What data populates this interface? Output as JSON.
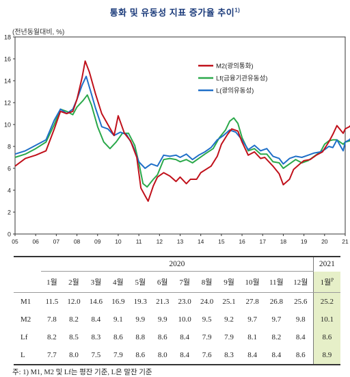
{
  "title": "통화 및 유동성 지표 증가율 추이",
  "title_footnote": "1)",
  "unit": "(전년동월대비, %)",
  "colors": {
    "M2": "#c0101a",
    "Lf": "#2aa84a",
    "L": "#1f6fc8",
    "title": "#1a3a7a",
    "highlight": "#e6efc8"
  },
  "chart_data": {
    "type": "line",
    "ylim": [
      0,
      18
    ],
    "yticks": [
      0,
      2,
      4,
      6,
      8,
      10,
      12,
      14,
      16,
      18
    ],
    "xticks": [
      "05",
      "06",
      "07",
      "08",
      "09",
      "10",
      "11",
      "12",
      "13",
      "14",
      "15",
      "16",
      "17",
      "18",
      "19",
      "20",
      "21"
    ],
    "x_start_year": 2005,
    "grid": false,
    "legend_position": "top-right",
    "series": [
      {
        "name": "M2(광의통화)",
        "key": "M2",
        "points": [
          [
            2005.0,
            6.2
          ],
          [
            2005.5,
            6.9
          ],
          [
            2006.0,
            7.2
          ],
          [
            2006.5,
            7.6
          ],
          [
            2006.9,
            9.6
          ],
          [
            2007.2,
            11.2
          ],
          [
            2007.5,
            11.0
          ],
          [
            2007.8,
            11.2
          ],
          [
            2008.0,
            12.3
          ],
          [
            2008.25,
            14.3
          ],
          [
            2008.4,
            15.8
          ],
          [
            2008.6,
            14.8
          ],
          [
            2008.9,
            12.8
          ],
          [
            2009.2,
            11.0
          ],
          [
            2009.5,
            10.0
          ],
          [
            2009.8,
            9.0
          ],
          [
            2010.0,
            10.8
          ],
          [
            2010.3,
            9.2
          ],
          [
            2010.6,
            8.5
          ],
          [
            2010.9,
            7.0
          ],
          [
            2011.1,
            4.2
          ],
          [
            2011.3,
            3.5
          ],
          [
            2011.45,
            3.0
          ],
          [
            2011.7,
            4.4
          ],
          [
            2011.9,
            5.2
          ],
          [
            2012.2,
            5.6
          ],
          [
            2012.5,
            5.3
          ],
          [
            2012.8,
            4.8
          ],
          [
            2013.0,
            5.2
          ],
          [
            2013.3,
            4.6
          ],
          [
            2013.5,
            5.0
          ],
          [
            2013.8,
            5.0
          ],
          [
            2014.0,
            5.6
          ],
          [
            2014.5,
            6.2
          ],
          [
            2014.8,
            7.1
          ],
          [
            2015.0,
            8.2
          ],
          [
            2015.3,
            9.1
          ],
          [
            2015.5,
            9.6
          ],
          [
            2015.8,
            9.4
          ],
          [
            2016.0,
            8.4
          ],
          [
            2016.3,
            7.2
          ],
          [
            2016.6,
            7.5
          ],
          [
            2016.9,
            6.9
          ],
          [
            2017.1,
            7.0
          ],
          [
            2017.5,
            6.2
          ],
          [
            2017.8,
            5.5
          ],
          [
            2018.0,
            4.5
          ],
          [
            2018.3,
            5.0
          ],
          [
            2018.5,
            5.9
          ],
          [
            2018.8,
            6.4
          ],
          [
            2019.0,
            6.7
          ],
          [
            2019.3,
            6.8
          ],
          [
            2019.6,
            7.2
          ],
          [
            2019.9,
            7.5
          ],
          [
            2020.0,
            7.8
          ],
          [
            2020.2,
            8.4
          ],
          [
            2020.4,
            9.1
          ],
          [
            2020.6,
            9.9
          ],
          [
            2020.9,
            9.2
          ],
          [
            2021.0,
            9.6
          ],
          [
            2021.2,
            9.8
          ],
          [
            2021.35,
            10.1
          ]
        ]
      },
      {
        "name": "Lf(금융기관유동성)",
        "key": "Lf",
        "points": [
          [
            2005.0,
            7.0
          ],
          [
            2005.5,
            7.3
          ],
          [
            2006.0,
            7.8
          ],
          [
            2006.5,
            8.4
          ],
          [
            2006.9,
            10.0
          ],
          [
            2007.2,
            11.4
          ],
          [
            2007.5,
            11.2
          ],
          [
            2007.8,
            10.9
          ],
          [
            2008.0,
            11.6
          ],
          [
            2008.3,
            12.2
          ],
          [
            2008.5,
            12.7
          ],
          [
            2008.7,
            11.8
          ],
          [
            2009.0,
            9.8
          ],
          [
            2009.3,
            8.4
          ],
          [
            2009.6,
            7.8
          ],
          [
            2009.9,
            8.4
          ],
          [
            2010.2,
            9.2
          ],
          [
            2010.5,
            9.2
          ],
          [
            2010.8,
            8.1
          ],
          [
            2011.0,
            6.5
          ],
          [
            2011.2,
            4.6
          ],
          [
            2011.4,
            4.3
          ],
          [
            2011.7,
            5.0
          ],
          [
            2011.9,
            5.4
          ],
          [
            2012.2,
            6.8
          ],
          [
            2012.5,
            6.9
          ],
          [
            2012.8,
            6.8
          ],
          [
            2013.0,
            6.6
          ],
          [
            2013.3,
            6.8
          ],
          [
            2013.6,
            6.5
          ],
          [
            2013.9,
            6.9
          ],
          [
            2014.2,
            7.3
          ],
          [
            2014.6,
            7.8
          ],
          [
            2014.9,
            8.8
          ],
          [
            2015.2,
            9.5
          ],
          [
            2015.4,
            10.3
          ],
          [
            2015.6,
            10.6
          ],
          [
            2015.8,
            10.1
          ],
          [
            2016.0,
            8.8
          ],
          [
            2016.3,
            7.6
          ],
          [
            2016.6,
            7.8
          ],
          [
            2016.9,
            7.3
          ],
          [
            2017.2,
            7.3
          ],
          [
            2017.5,
            6.6
          ],
          [
            2017.8,
            6.5
          ],
          [
            2018.0,
            6.0
          ],
          [
            2018.3,
            6.4
          ],
          [
            2018.6,
            6.8
          ],
          [
            2018.9,
            6.5
          ],
          [
            2019.2,
            6.7
          ],
          [
            2019.5,
            7.1
          ],
          [
            2019.8,
            7.5
          ],
          [
            2020.0,
            8.2
          ],
          [
            2020.2,
            8.5
          ],
          [
            2020.4,
            8.6
          ],
          [
            2020.6,
            8.6
          ],
          [
            2020.9,
            8.2
          ],
          [
            2021.0,
            8.4
          ],
          [
            2021.2,
            8.5
          ],
          [
            2021.35,
            8.6
          ]
        ]
      },
      {
        "name": "L(광의유동성)",
        "key": "L",
        "points": [
          [
            2005.0,
            7.3
          ],
          [
            2005.5,
            7.6
          ],
          [
            2006.0,
            8.1
          ],
          [
            2006.5,
            8.6
          ],
          [
            2006.9,
            10.4
          ],
          [
            2007.2,
            11.4
          ],
          [
            2007.5,
            11.0
          ],
          [
            2007.8,
            11.4
          ],
          [
            2008.0,
            12.3
          ],
          [
            2008.25,
            13.6
          ],
          [
            2008.45,
            14.4
          ],
          [
            2008.7,
            12.8
          ],
          [
            2008.9,
            11.5
          ],
          [
            2009.2,
            9.8
          ],
          [
            2009.5,
            9.6
          ],
          [
            2009.8,
            9.0
          ],
          [
            2010.1,
            9.3
          ],
          [
            2010.4,
            9.1
          ],
          [
            2010.7,
            8.1
          ],
          [
            2011.0,
            6.6
          ],
          [
            2011.3,
            6.0
          ],
          [
            2011.6,
            6.4
          ],
          [
            2011.9,
            6.2
          ],
          [
            2012.2,
            7.2
          ],
          [
            2012.5,
            7.1
          ],
          [
            2012.8,
            7.2
          ],
          [
            2013.0,
            7.0
          ],
          [
            2013.3,
            7.3
          ],
          [
            2013.6,
            6.8
          ],
          [
            2013.9,
            7.2
          ],
          [
            2014.2,
            7.5
          ],
          [
            2014.5,
            7.9
          ],
          [
            2014.8,
            8.6
          ],
          [
            2015.1,
            9.0
          ],
          [
            2015.4,
            9.5
          ],
          [
            2015.7,
            9.3
          ],
          [
            2016.0,
            8.6
          ],
          [
            2016.3,
            7.7
          ],
          [
            2016.6,
            8.1
          ],
          [
            2016.9,
            7.6
          ],
          [
            2017.2,
            7.8
          ],
          [
            2017.5,
            7.1
          ],
          [
            2017.8,
            6.9
          ],
          [
            2018.0,
            6.4
          ],
          [
            2018.3,
            6.9
          ],
          [
            2018.6,
            7.1
          ],
          [
            2018.9,
            7.0
          ],
          [
            2019.2,
            7.2
          ],
          [
            2019.5,
            7.4
          ],
          [
            2019.8,
            7.5
          ],
          [
            2020.0,
            7.7
          ],
          [
            2020.2,
            8.0
          ],
          [
            2020.4,
            7.9
          ],
          [
            2020.6,
            8.6
          ],
          [
            2020.9,
            7.6
          ],
          [
            2021.0,
            8.4
          ],
          [
            2021.2,
            8.6
          ],
          [
            2021.35,
            8.9
          ]
        ]
      }
    ]
  },
  "table": {
    "year_2020": "2020",
    "year_2021": "2021",
    "months_2020": [
      "1월",
      "2월",
      "3월",
      "4월",
      "5월",
      "6월",
      "7월",
      "8월",
      "9월",
      "10월",
      "11월",
      "12월"
    ],
    "month_2021": "1월",
    "month_2021_mark": "P",
    "rows": [
      {
        "label": "M1",
        "values": [
          "11.5",
          "12.0",
          "14.6",
          "16.9",
          "19.3",
          "21.3",
          "23.0",
          "24.0",
          "25.1",
          "27.8",
          "26.8",
          "25.6"
        ],
        "v2021": "25.2"
      },
      {
        "label": "M2",
        "values": [
          "7.8",
          "8.2",
          "8.4",
          "9.1",
          "9.9",
          "9.9",
          "10.0",
          "9.5",
          "9.2",
          "9.7",
          "9.7",
          "9.8"
        ],
        "v2021": "10.1"
      },
      {
        "label": "Lf",
        "values": [
          "8.2",
          "8.5",
          "8.3",
          "8.6",
          "8.8",
          "8.6",
          "8.4",
          "7.9",
          "7.9",
          "8.1",
          "8.2",
          "8.4"
        ],
        "v2021": "8.6"
      },
      {
        "label": "L",
        "values": [
          "7.7",
          "8.0",
          "7.5",
          "7.9",
          "8.6",
          "8.0",
          "8.4",
          "7.6",
          "8.3",
          "8.4",
          "8.4",
          "8.6"
        ],
        "v2021": "8.9"
      }
    ]
  },
  "note": "주: 1) M1, M2 및 Lf는 평잔 기준, L은 말잔 기준"
}
